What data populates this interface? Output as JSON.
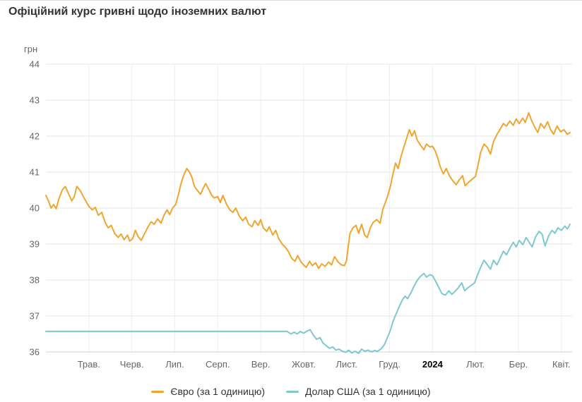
{
  "title": "Офіційний курс гривні щодо іноземних валют",
  "chart_data": {
    "type": "line",
    "title": "Офіційний курс гривні щодо іноземних валют",
    "ylabel": "грн",
    "ylim": [
      36,
      44
    ],
    "y_ticks": [
      36,
      37,
      38,
      39,
      40,
      41,
      42,
      43,
      44
    ],
    "x_domain": [
      0,
      12.25
    ],
    "x_ticks": [
      {
        "t": 1,
        "label": "Трав.",
        "bold": false
      },
      {
        "t": 2,
        "label": "Черв.",
        "bold": false
      },
      {
        "t": 3,
        "label": "Лип.",
        "bold": false
      },
      {
        "t": 4,
        "label": "Серп.",
        "bold": false
      },
      {
        "t": 5,
        "label": "Вер.",
        "bold": false
      },
      {
        "t": 6,
        "label": "Жовт.",
        "bold": false
      },
      {
        "t": 7,
        "label": "Лист.",
        "bold": false
      },
      {
        "t": 8,
        "label": "Груд.",
        "bold": false
      },
      {
        "t": 9,
        "label": "2024",
        "bold": true
      },
      {
        "t": 10,
        "label": "Лют.",
        "bold": false
      },
      {
        "t": 11,
        "label": "Бер.",
        "bold": false
      },
      {
        "t": 12,
        "label": "Квіт.",
        "bold": false
      }
    ],
    "grid": true,
    "legend_position": "bottom",
    "series": [
      {
        "name": "Долар США (за 1 одиницю)",
        "color": "#7ec8d2",
        "points": [
          [
            0.0,
            36.57
          ],
          [
            5.55,
            36.57
          ],
          [
            5.62,
            36.57
          ],
          [
            5.7,
            36.5
          ],
          [
            5.78,
            36.55
          ],
          [
            5.85,
            36.5
          ],
          [
            5.92,
            36.57
          ],
          [
            6.0,
            36.52
          ],
          [
            6.08,
            36.58
          ],
          [
            6.15,
            36.62
          ],
          [
            6.22,
            36.48
          ],
          [
            6.3,
            36.35
          ],
          [
            6.38,
            36.4
          ],
          [
            6.45,
            36.25
          ],
          [
            6.52,
            36.18
          ],
          [
            6.6,
            36.1
          ],
          [
            6.68,
            36.14
          ],
          [
            6.75,
            36.05
          ],
          [
            6.82,
            36.08
          ],
          [
            6.9,
            36.02
          ],
          [
            6.98,
            35.99
          ],
          [
            7.05,
            36.05
          ],
          [
            7.12,
            35.97
          ],
          [
            7.2,
            36.02
          ],
          [
            7.28,
            35.96
          ],
          [
            7.35,
            36.08
          ],
          [
            7.42,
            36.02
          ],
          [
            7.5,
            36.05
          ],
          [
            7.58,
            36.0
          ],
          [
            7.65,
            36.04
          ],
          [
            7.72,
            36.02
          ],
          [
            7.8,
            36.08
          ],
          [
            7.88,
            36.2
          ],
          [
            7.95,
            36.4
          ],
          [
            8.02,
            36.6
          ],
          [
            8.08,
            36.85
          ],
          [
            8.15,
            37.05
          ],
          [
            8.22,
            37.25
          ],
          [
            8.3,
            37.45
          ],
          [
            8.36,
            37.55
          ],
          [
            8.42,
            37.48
          ],
          [
            8.5,
            37.65
          ],
          [
            8.58,
            37.85
          ],
          [
            8.65,
            38.0
          ],
          [
            8.72,
            38.1
          ],
          [
            8.8,
            38.18
          ],
          [
            8.86,
            38.08
          ],
          [
            8.94,
            38.15
          ],
          [
            9.0,
            38.12
          ],
          [
            9.08,
            37.95
          ],
          [
            9.15,
            37.78
          ],
          [
            9.22,
            37.62
          ],
          [
            9.3,
            37.58
          ],
          [
            9.38,
            37.7
          ],
          [
            9.45,
            37.6
          ],
          [
            9.52,
            37.68
          ],
          [
            9.6,
            37.78
          ],
          [
            9.68,
            37.92
          ],
          [
            9.75,
            37.7
          ],
          [
            9.82,
            37.78
          ],
          [
            9.9,
            37.85
          ],
          [
            9.98,
            37.92
          ],
          [
            10.05,
            38.15
          ],
          [
            10.12,
            38.35
          ],
          [
            10.2,
            38.55
          ],
          [
            10.28,
            38.42
          ],
          [
            10.35,
            38.3
          ],
          [
            10.42,
            38.55
          ],
          [
            10.5,
            38.42
          ],
          [
            10.58,
            38.62
          ],
          [
            10.65,
            38.8
          ],
          [
            10.72,
            38.7
          ],
          [
            10.8,
            38.88
          ],
          [
            10.88,
            39.05
          ],
          [
            10.95,
            38.92
          ],
          [
            11.02,
            39.1
          ],
          [
            11.1,
            38.98
          ],
          [
            11.18,
            39.18
          ],
          [
            11.25,
            39.05
          ],
          [
            11.32,
            38.92
          ],
          [
            11.4,
            39.2
          ],
          [
            11.48,
            39.35
          ],
          [
            11.55,
            39.28
          ],
          [
            11.62,
            38.95
          ],
          [
            11.7,
            39.22
          ],
          [
            11.78,
            39.38
          ],
          [
            11.85,
            39.3
          ],
          [
            11.92,
            39.45
          ],
          [
            12.0,
            39.38
          ],
          [
            12.08,
            39.5
          ],
          [
            12.14,
            39.42
          ],
          [
            12.2,
            39.55
          ]
        ]
      },
      {
        "name": "Євро (за 1 одиницю)",
        "color": "#efa62f",
        "points": [
          [
            0.0,
            40.35
          ],
          [
            0.06,
            40.2
          ],
          [
            0.12,
            40.0
          ],
          [
            0.18,
            40.1
          ],
          [
            0.24,
            39.98
          ],
          [
            0.3,
            40.25
          ],
          [
            0.38,
            40.5
          ],
          [
            0.45,
            40.6
          ],
          [
            0.52,
            40.42
          ],
          [
            0.6,
            40.2
          ],
          [
            0.66,
            40.32
          ],
          [
            0.72,
            40.6
          ],
          [
            0.8,
            40.48
          ],
          [
            0.88,
            40.3
          ],
          [
            0.95,
            40.15
          ],
          [
            1.0,
            40.05
          ],
          [
            1.08,
            39.95
          ],
          [
            1.15,
            40.02
          ],
          [
            1.22,
            39.8
          ],
          [
            1.3,
            39.88
          ],
          [
            1.38,
            39.6
          ],
          [
            1.45,
            39.45
          ],
          [
            1.52,
            39.52
          ],
          [
            1.6,
            39.3
          ],
          [
            1.68,
            39.18
          ],
          [
            1.75,
            39.28
          ],
          [
            1.82,
            39.12
          ],
          [
            1.9,
            39.25
          ],
          [
            1.95,
            39.08
          ],
          [
            2.02,
            39.15
          ],
          [
            2.08,
            39.38
          ],
          [
            2.15,
            39.2
          ],
          [
            2.22,
            39.1
          ],
          [
            2.3,
            39.3
          ],
          [
            2.38,
            39.48
          ],
          [
            2.45,
            39.62
          ],
          [
            2.52,
            39.55
          ],
          [
            2.6,
            39.7
          ],
          [
            2.68,
            39.58
          ],
          [
            2.75,
            39.8
          ],
          [
            2.82,
            39.95
          ],
          [
            2.88,
            39.82
          ],
          [
            2.95,
            40.0
          ],
          [
            3.02,
            40.1
          ],
          [
            3.08,
            40.35
          ],
          [
            3.15,
            40.7
          ],
          [
            3.22,
            40.95
          ],
          [
            3.28,
            41.1
          ],
          [
            3.34,
            41.0
          ],
          [
            3.4,
            40.85
          ],
          [
            3.46,
            40.6
          ],
          [
            3.52,
            40.5
          ],
          [
            3.6,
            40.38
          ],
          [
            3.66,
            40.55
          ],
          [
            3.72,
            40.68
          ],
          [
            3.8,
            40.5
          ],
          [
            3.86,
            40.35
          ],
          [
            3.92,
            40.28
          ],
          [
            4.0,
            40.32
          ],
          [
            4.06,
            40.15
          ],
          [
            4.12,
            40.35
          ],
          [
            4.2,
            40.12
          ],
          [
            4.28,
            39.95
          ],
          [
            4.35,
            39.88
          ],
          [
            4.42,
            40.0
          ],
          [
            4.5,
            39.78
          ],
          [
            4.58,
            39.65
          ],
          [
            4.65,
            39.75
          ],
          [
            4.72,
            39.55
          ],
          [
            4.8,
            39.48
          ],
          [
            4.86,
            39.65
          ],
          [
            4.94,
            39.52
          ],
          [
            5.0,
            39.68
          ],
          [
            5.06,
            39.45
          ],
          [
            5.14,
            39.35
          ],
          [
            5.2,
            39.48
          ],
          [
            5.28,
            39.25
          ],
          [
            5.35,
            39.38
          ],
          [
            5.42,
            39.15
          ],
          [
            5.5,
            39.0
          ],
          [
            5.58,
            38.9
          ],
          [
            5.65,
            38.78
          ],
          [
            5.72,
            38.6
          ],
          [
            5.8,
            38.52
          ],
          [
            5.86,
            38.68
          ],
          [
            5.94,
            38.5
          ],
          [
            6.0,
            38.42
          ],
          [
            6.06,
            38.35
          ],
          [
            6.14,
            38.52
          ],
          [
            6.2,
            38.4
          ],
          [
            6.28,
            38.48
          ],
          [
            6.35,
            38.32
          ],
          [
            6.42,
            38.45
          ],
          [
            6.5,
            38.38
          ],
          [
            6.58,
            38.5
          ],
          [
            6.65,
            38.42
          ],
          [
            6.72,
            38.65
          ],
          [
            6.8,
            38.5
          ],
          [
            6.88,
            38.42
          ],
          [
            6.95,
            38.4
          ],
          [
            7.0,
            38.55
          ],
          [
            7.04,
            38.95
          ],
          [
            7.08,
            39.3
          ],
          [
            7.15,
            39.45
          ],
          [
            7.22,
            39.52
          ],
          [
            7.28,
            39.3
          ],
          [
            7.35,
            39.55
          ],
          [
            7.42,
            39.25
          ],
          [
            7.48,
            39.18
          ],
          [
            7.55,
            39.45
          ],
          [
            7.62,
            39.6
          ],
          [
            7.7,
            39.68
          ],
          [
            7.78,
            39.58
          ],
          [
            7.84,
            39.95
          ],
          [
            7.9,
            40.15
          ],
          [
            7.96,
            40.35
          ],
          [
            8.02,
            40.6
          ],
          [
            8.08,
            40.95
          ],
          [
            8.14,
            41.25
          ],
          [
            8.2,
            41.1
          ],
          [
            8.26,
            41.4
          ],
          [
            8.32,
            41.65
          ],
          [
            8.4,
            41.95
          ],
          [
            8.46,
            42.18
          ],
          [
            8.52,
            42.0
          ],
          [
            8.58,
            42.15
          ],
          [
            8.64,
            41.9
          ],
          [
            8.72,
            41.75
          ],
          [
            8.8,
            41.62
          ],
          [
            8.86,
            41.78
          ],
          [
            8.94,
            41.7
          ],
          [
            9.0,
            41.72
          ],
          [
            9.06,
            41.6
          ],
          [
            9.12,
            41.4
          ],
          [
            9.18,
            41.15
          ],
          [
            9.25,
            40.95
          ],
          [
            9.32,
            41.1
          ],
          [
            9.4,
            40.88
          ],
          [
            9.48,
            40.75
          ],
          [
            9.55,
            40.65
          ],
          [
            9.62,
            40.78
          ],
          [
            9.7,
            40.9
          ],
          [
            9.76,
            40.62
          ],
          [
            9.84,
            40.72
          ],
          [
            9.92,
            40.8
          ],
          [
            10.0,
            40.88
          ],
          [
            10.06,
            41.2
          ],
          [
            10.12,
            41.55
          ],
          [
            10.2,
            41.78
          ],
          [
            10.28,
            41.68
          ],
          [
            10.35,
            41.5
          ],
          [
            10.42,
            41.85
          ],
          [
            10.5,
            42.05
          ],
          [
            10.58,
            42.2
          ],
          [
            10.65,
            42.35
          ],
          [
            10.72,
            42.28
          ],
          [
            10.8,
            42.42
          ],
          [
            10.88,
            42.3
          ],
          [
            10.95,
            42.48
          ],
          [
            11.02,
            42.35
          ],
          [
            11.1,
            42.5
          ],
          [
            11.16,
            42.38
          ],
          [
            11.24,
            42.65
          ],
          [
            11.3,
            42.45
          ],
          [
            11.38,
            42.25
          ],
          [
            11.45,
            42.1
          ],
          [
            11.52,
            42.35
          ],
          [
            11.6,
            42.22
          ],
          [
            11.68,
            42.4
          ],
          [
            11.75,
            42.18
          ],
          [
            11.82,
            42.05
          ],
          [
            11.9,
            42.28
          ],
          [
            11.98,
            42.12
          ],
          [
            12.06,
            42.18
          ],
          [
            12.14,
            42.05
          ],
          [
            12.2,
            42.1
          ]
        ]
      }
    ]
  },
  "legend": {
    "items": [
      {
        "label": "Євро (за 1 одиницю)",
        "color": "#efa62f"
      },
      {
        "label": "Долар США (за 1 одиницю)",
        "color": "#7ec8d2"
      }
    ]
  }
}
